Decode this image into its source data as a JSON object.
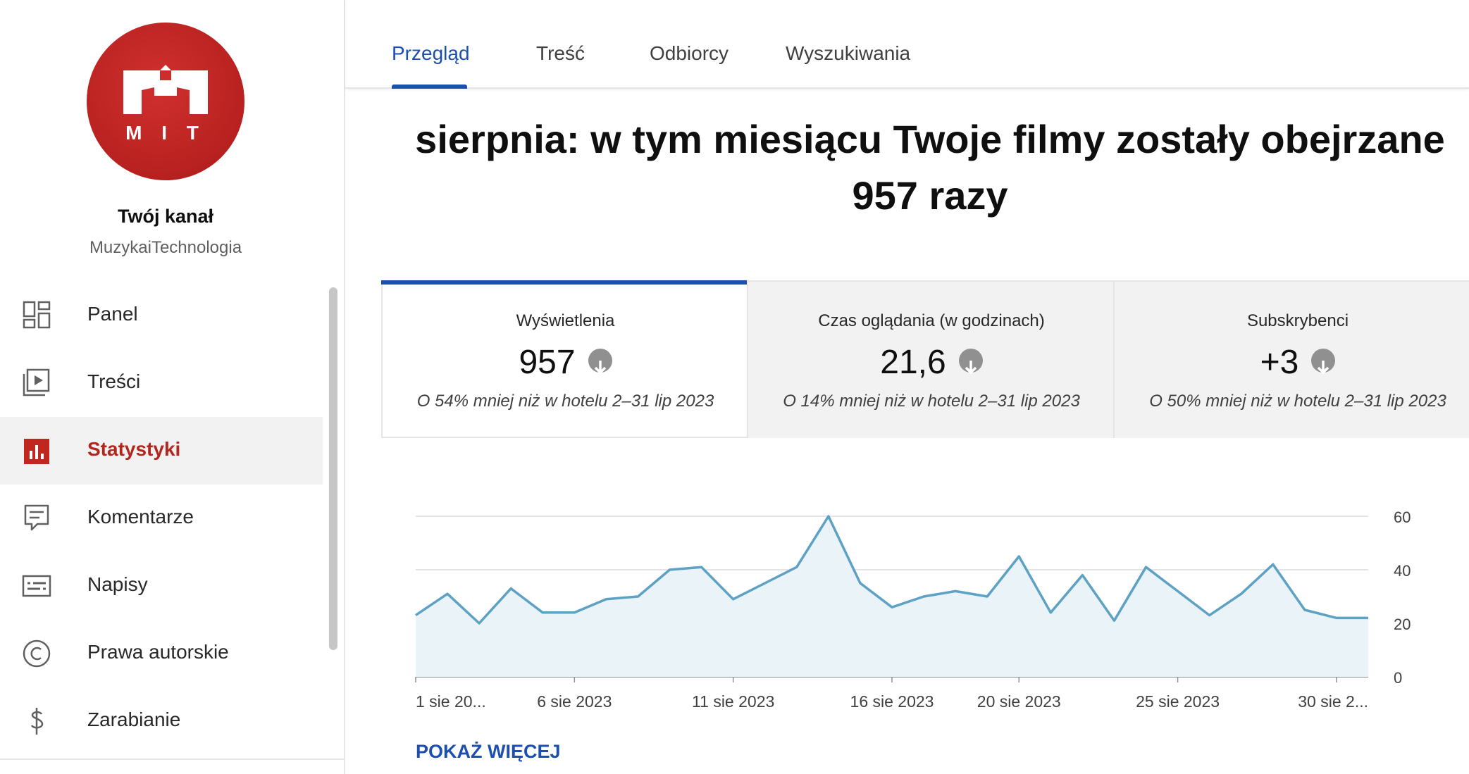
{
  "sidebar": {
    "channel_title": "Twój kanał",
    "channel_name": "MuzykaiTechnologia",
    "logo_text": "M I T",
    "items": [
      {
        "label": "Panel",
        "icon": "dashboard-icon"
      },
      {
        "label": "Treści",
        "icon": "content-icon"
      },
      {
        "label": "Statystyki",
        "icon": "analytics-icon",
        "active": true
      },
      {
        "label": "Komentarze",
        "icon": "comments-icon"
      },
      {
        "label": "Napisy",
        "icon": "subtitles-icon"
      },
      {
        "label": "Prawa autorskie",
        "icon": "copyright-icon"
      },
      {
        "label": "Zarabianie",
        "icon": "monetization-icon"
      }
    ]
  },
  "tabs": [
    "Przegląd",
    "Treść",
    "Odbiorcy",
    "Wyszukiwania"
  ],
  "active_tab": "Przegląd",
  "headline_line1": "sierpnia: w tym miesiącu Twoje filmy zostały obejrzane",
  "headline_line2": "957 razy",
  "metrics": [
    {
      "label": "Wyświetlenia",
      "value": "957",
      "note": "O 54% mniej niż w hotelu 2–31 lip 2023",
      "trend": "down"
    },
    {
      "label": "Czas oglądania (w godzinach)",
      "value": "21,6",
      "note": "O 14% mniej niż w hotelu 2–31 lip 2023",
      "trend": "down"
    },
    {
      "label": "Subskrybenci",
      "value": "+3",
      "note": "O 50% mniej niż w hotelu 2–31 lip 2023",
      "trend": "down"
    }
  ],
  "show_more": "POKAŻ WIĘCEJ",
  "colors": {
    "accent": "#1c4fb0",
    "active_nav": "#b3261e",
    "line": "#5da1c4",
    "fill": "#e9f3f8"
  },
  "chart_data": {
    "type": "area",
    "x": [
      "1 sie",
      "2 sie",
      "3 sie",
      "4 sie",
      "5 sie",
      "6 sie",
      "7 sie",
      "8 sie",
      "9 sie",
      "10 sie",
      "11 sie",
      "12 sie",
      "13 sie",
      "14 sie",
      "15 sie",
      "16 sie",
      "17 sie",
      "18 sie",
      "19 sie",
      "20 sie",
      "21 sie",
      "22 sie",
      "23 sie",
      "24 sie",
      "25 sie",
      "26 sie",
      "27 sie",
      "28 sie",
      "29 sie",
      "30 sie",
      "31 sie"
    ],
    "values": [
      23,
      31,
      20,
      33,
      24,
      24,
      29,
      30,
      40,
      41,
      29,
      35,
      41,
      60,
      35,
      26,
      30,
      32,
      30,
      45,
      24,
      38,
      21,
      41,
      32,
      23,
      31,
      42,
      25,
      22,
      22
    ],
    "x_tick_labels": [
      "1 sie 20...",
      "6 sie 2023",
      "11 sie 2023",
      "16 sie 2023",
      "20 sie 2023",
      "25 sie 2023",
      "30 sie 2..."
    ],
    "x_tick_positions": [
      0,
      5,
      10,
      15,
      19,
      24,
      29
    ],
    "y_ticks": [
      "0",
      "20",
      "40",
      "60"
    ],
    "ylim": [
      0,
      60
    ],
    "grid": true
  }
}
